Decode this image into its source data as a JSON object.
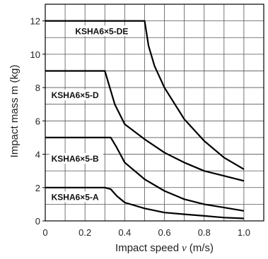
{
  "chart_data": {
    "type": "line",
    "title": "",
    "xlabel": "Impact speed",
    "xlabel_symbol": "v",
    "xlabel_unit": "(m/s)",
    "ylabel": "Impact mass m (kg)",
    "xlim": [
      0,
      1.1
    ],
    "ylim": [
      0,
      13
    ],
    "x_ticks": [
      0,
      0.2,
      0.4,
      0.6,
      0.8,
      1.0
    ],
    "x_tick_labels": [
      "0",
      "0.2",
      "0.4",
      "0.6",
      "0.8",
      "1.0"
    ],
    "y_ticks": [
      0,
      2,
      4,
      6,
      8,
      10,
      12
    ],
    "y_tick_labels": [
      "0",
      "2",
      "4",
      "6",
      "8",
      "10",
      "12"
    ],
    "grid": true,
    "grid_step_x": 0.1,
    "grid_step_y": 1,
    "legend": "inline",
    "line_color": "#000000",
    "series": [
      {
        "name": "KSHA6×5-A",
        "x": [
          0,
          0.3,
          0.33,
          0.36,
          0.4,
          0.5,
          0.6,
          0.7,
          0.8,
          0.9,
          1.0
        ],
        "y": [
          2,
          2,
          1.9,
          1.5,
          1.1,
          0.75,
          0.5,
          0.4,
          0.3,
          0.2,
          0.15
        ]
      },
      {
        "name": "KSHA6×5-B",
        "x": [
          0,
          0.33,
          0.36,
          0.4,
          0.5,
          0.6,
          0.7,
          0.8,
          0.9,
          1.0
        ],
        "y": [
          5,
          5,
          4.4,
          3.5,
          2.5,
          1.8,
          1.3,
          1.0,
          0.8,
          0.6
        ]
      },
      {
        "name": "KSHA6×5-D",
        "x": [
          0,
          0.3,
          0.35,
          0.4,
          0.5,
          0.6,
          0.7,
          0.8,
          0.9,
          1.0
        ],
        "y": [
          9,
          9,
          7.0,
          5.8,
          4.9,
          4.1,
          3.5,
          3.0,
          2.7,
          2.4
        ]
      },
      {
        "name": "KSHA6×5-DE",
        "x": [
          0,
          0.5,
          0.52,
          0.55,
          0.6,
          0.7,
          0.8,
          0.9,
          1.0
        ],
        "y": [
          12,
          12,
          10.5,
          9.3,
          8.0,
          6.1,
          4.8,
          3.8,
          3.1
        ]
      }
    ]
  }
}
